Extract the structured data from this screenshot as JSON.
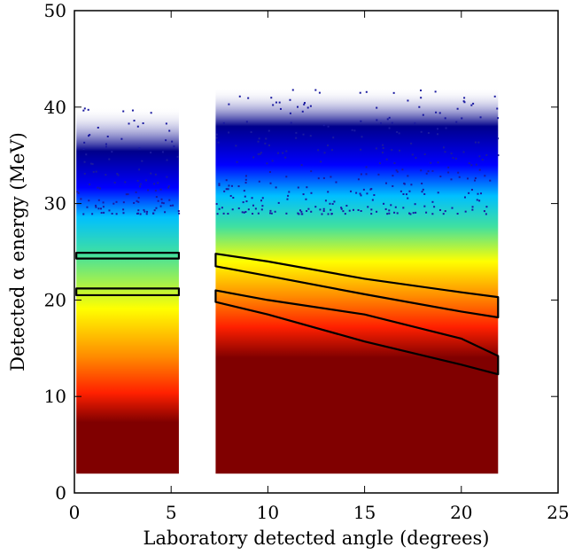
{
  "chart_data": {
    "type": "heatmap",
    "title": "",
    "xlabel": "Laboratory detected angle (degrees)",
    "ylabel": "Detected α energy (MeV)",
    "xlim": [
      0,
      25
    ],
    "ylim": [
      0,
      50
    ],
    "x_ticks": [
      0,
      5,
      10,
      15,
      20,
      25
    ],
    "y_ticks": [
      0,
      10,
      20,
      30,
      40,
      50
    ],
    "grid": false,
    "colormap": [
      "#00008b",
      "#0000ff",
      "#00bfff",
      "#40e0a0",
      "#ffff00",
      "#ff8c00",
      "#ff2000",
      "#800000"
    ],
    "regions": [
      {
        "x_range": [
          0.1,
          5.4
        ],
        "ymin": 2,
        "ymax": 40
      },
      {
        "x_range": [
          7.3,
          21.9
        ],
        "ymin": 2,
        "ymax": 42
      }
    ],
    "gates": [
      {
        "shape": "band",
        "x": [
          0.1,
          5.4
        ],
        "upper": [
          24.9,
          24.9
        ],
        "lower": [
          24.3,
          24.3
        ]
      },
      {
        "shape": "band",
        "x": [
          0.1,
          5.4
        ],
        "upper": [
          21.2,
          21.2
        ],
        "lower": [
          20.5,
          20.5
        ]
      },
      {
        "shape": "band",
        "x": [
          7.3,
          10,
          15,
          20,
          21.9
        ],
        "upper": [
          24.8,
          24.0,
          22.2,
          20.8,
          20.3
        ],
        "lower": [
          23.5,
          22.5,
          20.6,
          18.8,
          18.2
        ]
      },
      {
        "shape": "band",
        "x": [
          7.3,
          10,
          15,
          20,
          21.9
        ],
        "upper": [
          21.0,
          20.0,
          18.5,
          16.0,
          14.2
        ],
        "lower": [
          19.8,
          18.5,
          15.7,
          13.3,
          12.3
        ]
      }
    ]
  }
}
